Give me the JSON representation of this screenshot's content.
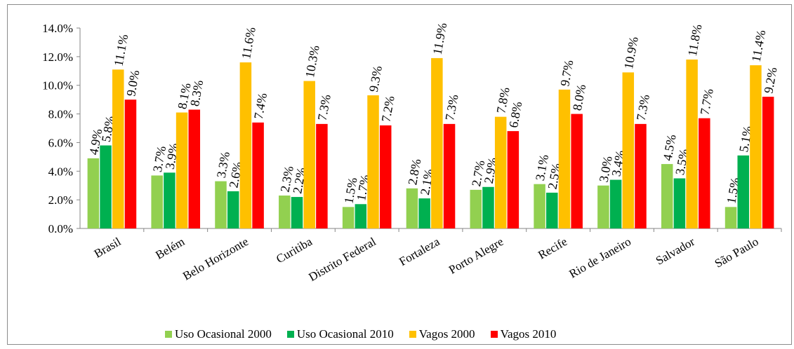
{
  "chart_data": {
    "type": "bar",
    "title": "",
    "xlabel": "",
    "ylabel": "",
    "ylim": [
      0,
      14
    ],
    "yticks": [
      "0.0%",
      "2.0%",
      "4.0%",
      "6.0%",
      "8.0%",
      "10.0%",
      "12.0%",
      "14.0%"
    ],
    "tick_step": 2,
    "categories": [
      "Brasil",
      "Belém",
      "Belo Horizonte",
      "Curitiba",
      "Distrito Federal",
      "Fortaleza",
      "Porto Alegre",
      "Recife",
      "Rio de Janeiro",
      "Salvador",
      "São Paulo"
    ],
    "series": [
      {
        "name": "Uso Ocasional 2000",
        "color": "#92d050",
        "values": [
          4.9,
          3.7,
          3.3,
          2.3,
          1.5,
          2.8,
          2.7,
          3.1,
          3.0,
          4.5,
          1.5
        ]
      },
      {
        "name": "Uso Ocasional 2010",
        "color": "#00b050",
        "values": [
          5.8,
          3.9,
          2.6,
          2.2,
          1.7,
          2.1,
          2.9,
          2.5,
          3.4,
          3.5,
          5.1
        ]
      },
      {
        "name": "Vagos 2000",
        "color": "#ffc000",
        "values": [
          11.1,
          8.1,
          11.6,
          10.3,
          9.3,
          11.9,
          7.8,
          9.7,
          10.9,
          11.8,
          11.4
        ]
      },
      {
        "name": "Vagos 2010",
        "color": "#ff0000",
        "values": [
          9.0,
          8.3,
          7.4,
          7.3,
          7.2,
          7.3,
          6.8,
          8.0,
          7.3,
          7.7,
          9.2
        ]
      }
    ],
    "data_labels": true,
    "grid": false,
    "legend_position": "bottom"
  }
}
